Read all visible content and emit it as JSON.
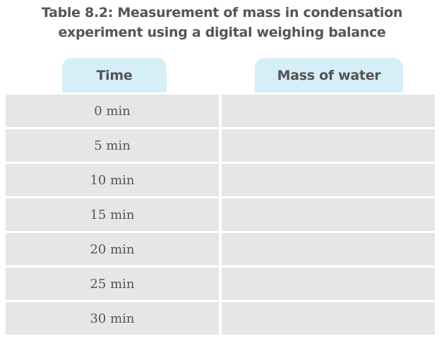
{
  "title": {
    "line1": "Table 8.2: Measurement of mass in condensation",
    "line2": "experiment using a digital weighing balance"
  },
  "table": {
    "headers": [
      "Time",
      "Mass of water"
    ],
    "rows": [
      {
        "time": "0 min",
        "mass": ""
      },
      {
        "time": "5 min",
        "mass": ""
      },
      {
        "time": "10 min",
        "mass": ""
      },
      {
        "time": "15 min",
        "mass": ""
      },
      {
        "time": "20 min",
        "mass": ""
      },
      {
        "time": "25 min",
        "mass": ""
      },
      {
        "time": "30 min",
        "mass": ""
      }
    ]
  },
  "colors": {
    "header_bg": "#d6eef7",
    "cell_bg": "#e6e6e8",
    "text": "#555456"
  }
}
